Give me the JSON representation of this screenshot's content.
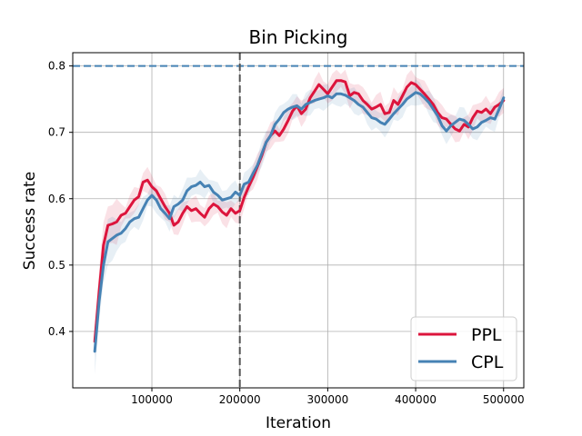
{
  "chart_data": {
    "type": "line",
    "title": "Bin Picking",
    "xlabel": "Iteration",
    "ylabel": "Success rate",
    "xlim": [
      10000,
      523000
    ],
    "ylim": [
      0.315,
      0.82
    ],
    "xticks": [
      100000,
      200000,
      300000,
      400000,
      500000
    ],
    "xtick_labels": [
      "100000",
      "200000",
      "300000",
      "400000",
      "500000"
    ],
    "yticks": [
      0.4,
      0.5,
      0.6,
      0.7,
      0.8
    ],
    "ytick_labels": [
      "0.4",
      "0.5",
      "0.6",
      "0.7",
      "0.8"
    ],
    "grid": true,
    "legend_position": "lower-right",
    "reference_lines": {
      "horizontal_y": 0.8,
      "horizontal_color": "#4682b4",
      "vertical_x": 200000,
      "vertical_color": "#555555"
    },
    "x": [
      35000,
      40000,
      45000,
      50000,
      55000,
      60000,
      65000,
      70000,
      75000,
      80000,
      85000,
      90000,
      95000,
      100000,
      105000,
      110000,
      115000,
      120000,
      125000,
      130000,
      135000,
      140000,
      145000,
      150000,
      155000,
      160000,
      165000,
      170000,
      175000,
      180000,
      185000,
      190000,
      195000,
      200000,
      205000,
      210000,
      215000,
      220000,
      225000,
      230000,
      235000,
      240000,
      245000,
      250000,
      255000,
      260000,
      265000,
      270000,
      275000,
      280000,
      285000,
      290000,
      295000,
      300000,
      305000,
      310000,
      315000,
      320000,
      325000,
      330000,
      335000,
      340000,
      345000,
      350000,
      355000,
      360000,
      365000,
      370000,
      375000,
      380000,
      385000,
      390000,
      395000,
      400000,
      405000,
      410000,
      415000,
      420000,
      425000,
      430000,
      435000,
      440000,
      445000,
      450000,
      455000,
      460000,
      465000,
      470000,
      475000,
      480000,
      485000,
      490000,
      495000,
      500000
    ],
    "series": [
      {
        "name": "PPL",
        "color": "#dc143c",
        "values": [
          0.385,
          0.46,
          0.53,
          0.56,
          0.562,
          0.565,
          0.575,
          0.578,
          0.588,
          0.598,
          0.603,
          0.625,
          0.628,
          0.618,
          0.612,
          0.6,
          0.588,
          0.578,
          0.56,
          0.565,
          0.578,
          0.588,
          0.582,
          0.585,
          0.578,
          0.572,
          0.585,
          0.592,
          0.588,
          0.58,
          0.575,
          0.585,
          0.578,
          0.582,
          0.602,
          0.618,
          0.632,
          0.648,
          0.665,
          0.685,
          0.695,
          0.702,
          0.695,
          0.705,
          0.718,
          0.732,
          0.74,
          0.728,
          0.735,
          0.752,
          0.762,
          0.772,
          0.765,
          0.758,
          0.768,
          0.778,
          0.778,
          0.776,
          0.755,
          0.76,
          0.758,
          0.748,
          0.742,
          0.735,
          0.738,
          0.742,
          0.728,
          0.73,
          0.748,
          0.742,
          0.755,
          0.768,
          0.775,
          0.772,
          0.765,
          0.758,
          0.75,
          0.742,
          0.73,
          0.722,
          0.72,
          0.712,
          0.705,
          0.702,
          0.712,
          0.708,
          0.722,
          0.732,
          0.73,
          0.735,
          0.728,
          0.738,
          0.742,
          0.748
        ]
      },
      {
        "name": "CPL",
        "color": "#4682b4",
        "values": [
          0.37,
          0.445,
          0.5,
          0.535,
          0.54,
          0.545,
          0.548,
          0.555,
          0.565,
          0.57,
          0.572,
          0.585,
          0.598,
          0.605,
          0.598,
          0.585,
          0.578,
          0.57,
          0.588,
          0.592,
          0.598,
          0.612,
          0.618,
          0.62,
          0.625,
          0.618,
          0.62,
          0.61,
          0.605,
          0.598,
          0.6,
          0.602,
          0.61,
          0.605,
          0.622,
          0.625,
          0.638,
          0.65,
          0.668,
          0.685,
          0.695,
          0.712,
          0.72,
          0.73,
          0.735,
          0.738,
          0.74,
          0.735,
          0.742,
          0.745,
          0.748,
          0.75,
          0.752,
          0.755,
          0.752,
          0.758,
          0.758,
          0.756,
          0.752,
          0.748,
          0.742,
          0.738,
          0.73,
          0.722,
          0.72,
          0.715,
          0.712,
          0.72,
          0.728,
          0.735,
          0.742,
          0.75,
          0.755,
          0.76,
          0.758,
          0.752,
          0.745,
          0.735,
          0.725,
          0.71,
          0.702,
          0.71,
          0.715,
          0.72,
          0.718,
          0.712,
          0.705,
          0.708,
          0.715,
          0.718,
          0.722,
          0.72,
          0.735,
          0.752
        ]
      }
    ]
  }
}
